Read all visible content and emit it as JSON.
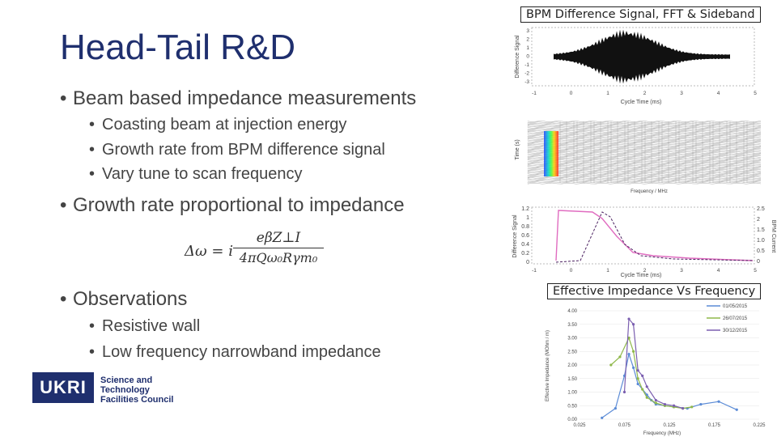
{
  "slide": {
    "title": "Head-Tail R&D",
    "bullets": [
      {
        "text": "Beam based impedance measurements",
        "sub": [
          "Coasting beam at injection energy",
          "Growth rate from BPM difference signal",
          "Vary tune to scan frequency"
        ]
      },
      {
        "text": "Growth rate proportional to impedance",
        "sub": []
      },
      {
        "text": "Observations",
        "sub": [
          "Resistive wall",
          "Low frequency narrowband impedance"
        ]
      }
    ],
    "bullet_symbol": "•",
    "logo": {
      "mark": "UKRI",
      "lines": [
        "Science and",
        "Technology",
        "Facilities Council"
      ]
    }
  },
  "formula": {
    "lhs": "Δω = i",
    "num": "eβZ⊥I",
    "den": "4πQω₀Rγm₀"
  },
  "figures": {
    "top": {
      "caption": "BPM Difference Signal, FFT & Sideband",
      "plot1": {
        "ylabel": "Difference Signal",
        "xlabel": "Cycle Time (ms)",
        "yticks": [
          "3",
          "2",
          "1",
          "0",
          "-1",
          "-2",
          "-3"
        ],
        "xticks": [
          "-1",
          "0",
          "1",
          "2",
          "3",
          "4",
          "5"
        ]
      },
      "plot2": {
        "ylabel": "Time (s)",
        "xlabel": "Frequency / MHz"
      },
      "plot3": {
        "ylabel": "Difference Signal",
        "ylabel_right": "BPM Current",
        "xlabel": "Cycle Time (ms)",
        "yticks": [
          "1.2",
          "1",
          "0.8",
          "0.6",
          "0.4",
          "0.2",
          "0"
        ],
        "yticks_right": [
          "2.5",
          "2",
          "1.5",
          "1.0",
          "0.5",
          "0"
        ],
        "xticks": [
          "-1",
          "0",
          "1",
          "2",
          "3",
          "4",
          "5"
        ]
      }
    },
    "bottom": {
      "caption": "Effective Impedance Vs Frequency",
      "ylabel": "Effective Impedance (MOhm / m)",
      "xlabel": "Frequency (MHz)",
      "yticks": [
        "4.00",
        "3.50",
        "3.00",
        "2.50",
        "2.00",
        "1.50",
        "1.00",
        "0.50",
        "0.00"
      ],
      "xticks": [
        "0.025",
        "0.075",
        "0.125",
        "0.175",
        "0.225"
      ],
      "legend": [
        "01/05/2015",
        "26/07/2015",
        "30/12/2015"
      ],
      "colors": [
        "#5b8bd6",
        "#8fb84a",
        "#7b5fb0"
      ]
    }
  },
  "chart_data": {
    "type": "line",
    "xlabel": "Frequency (MHz)",
    "ylabel": "Effective Impedance (MOhm / m)",
    "ylim": [
      0,
      4.0
    ],
    "xlim": [
      0.025,
      0.225
    ],
    "legend_position": "top-right",
    "series": [
      {
        "name": "01/05/2015",
        "x": [
          0.05,
          0.065,
          0.075,
          0.08,
          0.085,
          0.09,
          0.1,
          0.105,
          0.11,
          0.12,
          0.13,
          0.145,
          0.16,
          0.18,
          0.2
        ],
        "y": [
          0.05,
          0.4,
          1.6,
          2.4,
          1.9,
          1.3,
          0.9,
          0.7,
          0.55,
          0.5,
          0.45,
          0.4,
          0.55,
          0.65,
          0.35
        ]
      },
      {
        "name": "26/07/2015",
        "x": [
          0.06,
          0.07,
          0.08,
          0.085,
          0.09,
          0.095,
          0.1,
          0.11,
          0.12,
          0.13,
          0.14,
          0.15
        ],
        "y": [
          2.0,
          2.3,
          3.0,
          2.5,
          1.5,
          1.1,
          0.8,
          0.6,
          0.5,
          0.45,
          0.4,
          0.45
        ]
      },
      {
        "name": "30/12/2015",
        "x": [
          0.075,
          0.08,
          0.085,
          0.09,
          0.095,
          0.1,
          0.11,
          0.12,
          0.13,
          0.14
        ],
        "y": [
          1.0,
          3.7,
          3.5,
          1.8,
          1.6,
          1.2,
          0.7,
          0.55,
          0.5,
          0.4
        ]
      }
    ]
  }
}
